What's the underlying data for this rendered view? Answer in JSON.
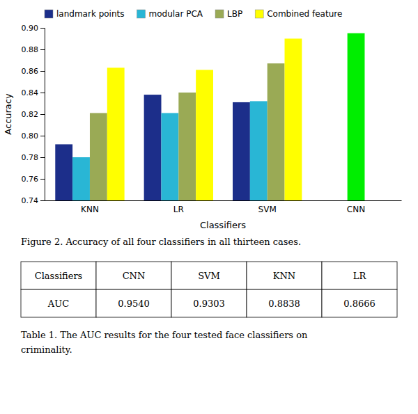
{
  "chart_data": [
    {
      "type": "bar",
      "categories": [
        "KNN",
        "LR",
        "SVM",
        "CNN"
      ],
      "series": [
        {
          "name": "landmark points",
          "color": "#1c2e8a",
          "values": [
            0.792,
            0.838,
            0.831,
            null
          ]
        },
        {
          "name": "modular PCA",
          "color": "#29b6d5",
          "values": [
            0.78,
            0.821,
            0.832,
            null
          ]
        },
        {
          "name": "LBP",
          "color": "#9aaa55",
          "values": [
            0.821,
            0.84,
            0.867,
            null
          ]
        },
        {
          "name": "Combined feature",
          "color": "#ffff00",
          "values": [
            0.863,
            0.861,
            0.89,
            null
          ]
        },
        {
          "color": "#00ee00",
          "values": [
            null,
            null,
            null,
            0.895
          ]
        }
      ],
      "xlabel": "Classifiers",
      "ylabel": "Accuracy",
      "ylim": [
        0.74,
        0.9
      ],
      "yticks": [
        0.74,
        0.76,
        0.78,
        {
          "value": 0.8,
          "label": "0.80"
        },
        0.82,
        0.84,
        0.86,
        0.88,
        {
          "value": 0.9,
          "label": "0.90"
        }
      ],
      "legend": "upper left",
      "annotations": [
        "Figure 2. Accuracy of all four classifiers in all thirteen cases."
      ]
    },
    {
      "type": "table",
      "columns": [
        "Classifiers",
        "CNN",
        "SVM",
        "KNN",
        "LR"
      ],
      "rows": [
        [
          "AUC",
          {
            "value": 0.954,
            "label": "0.9540"
          },
          {
            "value": 0.9303,
            "label": "0.9303"
          },
          {
            "value": 0.8838,
            "label": "0.8838"
          },
          {
            "value": 0.8666,
            "label": "0.8666"
          }
        ]
      ],
      "annotations": [
        "Table 1. The AUC results for the four tested face classifiers on",
        "criminality."
      ]
    }
  ]
}
